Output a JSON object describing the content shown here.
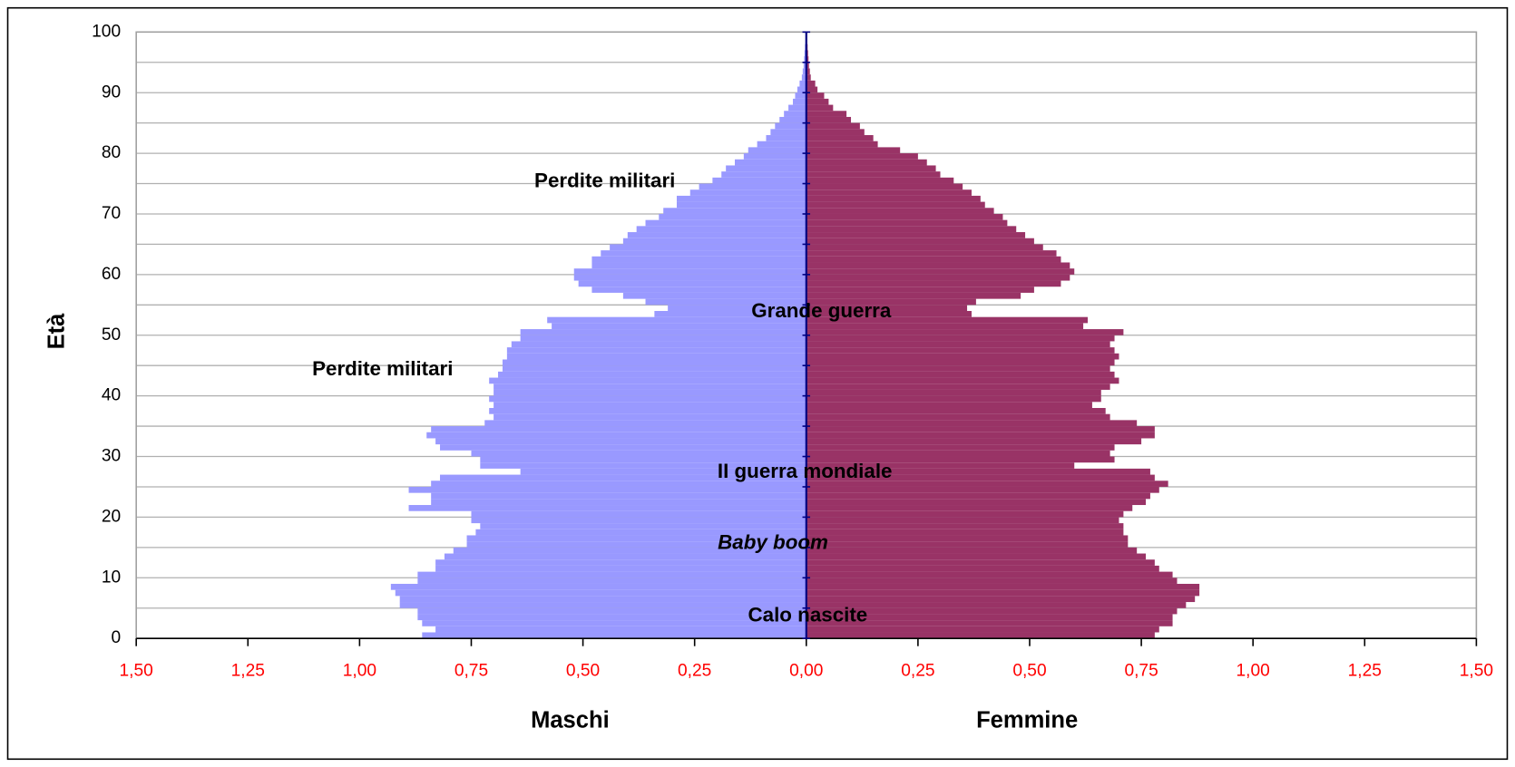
{
  "chart_data": {
    "type": "pyramid",
    "xlabel_left": "Maschi",
    "xlabel_right": "Femmine",
    "ylabel": "Età",
    "annotations": [
      "Perdite militari",
      "Grande guerra",
      "Perdite militari",
      "II guerra mondiale",
      "Baby boom",
      "Calo nascite"
    ],
    "x": [
      0,
      1,
      2,
      3,
      4,
      5,
      6,
      7,
      8,
      9,
      10,
      11,
      12,
      13,
      14,
      15,
      16,
      17,
      18,
      19,
      20,
      21,
      22,
      23,
      24,
      25,
      26,
      27,
      28,
      29,
      30,
      31,
      32,
      33,
      34,
      35,
      36,
      37,
      38,
      39,
      40,
      41,
      42,
      43,
      44,
      45,
      46,
      47,
      48,
      49,
      50,
      51,
      52,
      53,
      54,
      55,
      56,
      57,
      58,
      59,
      60,
      61,
      62,
      63,
      64,
      65,
      66,
      67,
      68,
      69,
      70,
      71,
      72,
      73,
      74,
      75,
      76,
      77,
      78,
      79,
      80,
      81,
      82,
      83,
      84,
      85,
      86,
      87,
      88,
      89,
      90,
      91,
      92,
      93,
      94,
      95,
      96,
      97,
      98,
      99
    ],
    "series": [
      {
        "name": "Maschi",
        "color": "#9999ff",
        "values": [
          -0.86,
          -0.83,
          -0.86,
          -0.87,
          -0.87,
          -0.91,
          -0.91,
          -0.92,
          -0.93,
          -0.87,
          -0.87,
          -0.83,
          -0.83,
          -0.81,
          -0.79,
          -0.76,
          -0.76,
          -0.74,
          -0.73,
          -0.75,
          -0.75,
          -0.89,
          -0.84,
          -0.84,
          -0.89,
          -0.84,
          -0.82,
          -0.64,
          -0.73,
          -0.73,
          -0.75,
          -0.82,
          -0.83,
          -0.85,
          -0.84,
          -0.72,
          -0.7,
          -0.71,
          -0.7,
          -0.71,
          -0.7,
          -0.7,
          -0.71,
          -0.69,
          -0.68,
          -0.68,
          -0.67,
          -0.67,
          -0.66,
          -0.64,
          -0.64,
          -0.57,
          -0.58,
          -0.34,
          -0.31,
          -0.36,
          -0.41,
          -0.48,
          -0.51,
          -0.52,
          -0.52,
          -0.48,
          -0.48,
          -0.46,
          -0.44,
          -0.41,
          -0.4,
          -0.38,
          -0.36,
          -0.33,
          -0.32,
          -0.29,
          -0.29,
          -0.26,
          -0.24,
          -0.21,
          -0.19,
          -0.18,
          -0.16,
          -0.14,
          -0.13,
          -0.11,
          -0.09,
          -0.08,
          -0.07,
          -0.06,
          -0.05,
          -0.04,
          -0.03,
          -0.025,
          -0.02,
          -0.015,
          -0.01,
          -0.008,
          -0.006,
          -0.005,
          -0.004,
          -0.003,
          -0.002,
          -0.002
        ]
      },
      {
        "name": "Femmine",
        "color": "#993366",
        "values": [
          0.78,
          0.79,
          0.82,
          0.82,
          0.83,
          0.85,
          0.87,
          0.88,
          0.88,
          0.83,
          0.82,
          0.79,
          0.78,
          0.76,
          0.74,
          0.72,
          0.72,
          0.71,
          0.71,
          0.7,
          0.71,
          0.73,
          0.76,
          0.77,
          0.79,
          0.81,
          0.78,
          0.77,
          0.6,
          0.69,
          0.68,
          0.69,
          0.75,
          0.78,
          0.78,
          0.74,
          0.68,
          0.67,
          0.64,
          0.66,
          0.66,
          0.68,
          0.7,
          0.69,
          0.68,
          0.69,
          0.7,
          0.69,
          0.68,
          0.69,
          0.71,
          0.62,
          0.63,
          0.37,
          0.36,
          0.38,
          0.48,
          0.51,
          0.57,
          0.59,
          0.6,
          0.59,
          0.57,
          0.56,
          0.53,
          0.51,
          0.49,
          0.47,
          0.45,
          0.44,
          0.42,
          0.4,
          0.39,
          0.37,
          0.35,
          0.33,
          0.3,
          0.29,
          0.27,
          0.25,
          0.21,
          0.16,
          0.15,
          0.13,
          0.12,
          0.1,
          0.09,
          0.06,
          0.05,
          0.04,
          0.025,
          0.02,
          0.01,
          0.008,
          0.006,
          0.005,
          0.004,
          0.003,
          0.002,
          0.002
        ]
      }
    ],
    "xlim": [
      -1.5,
      1.5
    ],
    "xticks": [
      {
        "value": -1.5,
        "label": "1,50"
      },
      {
        "value": -1.25,
        "label": "1,25"
      },
      {
        "value": -1,
        "label": "1,00"
      },
      {
        "value": -0.75,
        "label": "0,75"
      },
      {
        "value": -0.5,
        "label": "0,50"
      },
      {
        "value": -0.25,
        "label": "0,25"
      },
      {
        "value": 0,
        "label": "0,00"
      },
      {
        "value": 0.25,
        "label": "0,25"
      },
      {
        "value": 0.5,
        "label": "0,50"
      },
      {
        "value": 0.75,
        "label": "0,75"
      },
      {
        "value": 1,
        "label": "1,00"
      },
      {
        "value": 1.25,
        "label": "1,25"
      },
      {
        "value": 1.5,
        "label": "1,50"
      }
    ],
    "xtick_color": "#ff0000",
    "ylim": [
      0,
      100
    ],
    "yticks": [
      0,
      10,
      20,
      30,
      40,
      50,
      60,
      70,
      80,
      90,
      100
    ],
    "yminorticks": [
      5,
      15,
      25,
      35,
      45,
      55,
      65,
      75,
      85,
      95
    ],
    "grid": true
  }
}
